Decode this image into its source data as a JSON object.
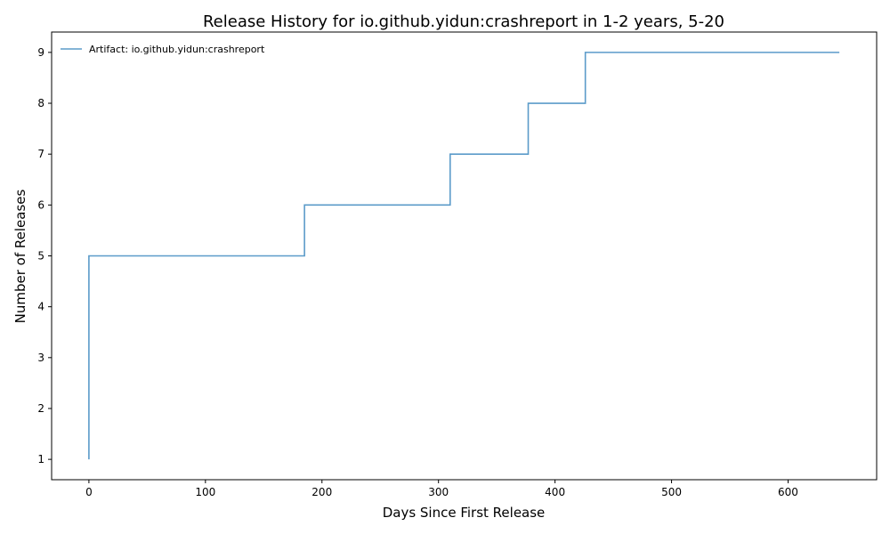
{
  "chart_data": {
    "type": "line",
    "title": "Release History for io.github.yidun:crashreport in 1-2 years, 5-20",
    "xlabel": "Days Since First Release",
    "ylabel": "Number of Releases",
    "xlim": [
      -32,
      676
    ],
    "ylim": [
      0.6,
      9.4
    ],
    "xticks": [
      0,
      100,
      200,
      300,
      400,
      500,
      600
    ],
    "yticks": [
      1,
      2,
      3,
      4,
      5,
      6,
      7,
      8,
      9
    ],
    "grid": false,
    "legend_position": "top-left",
    "step": "post",
    "series": [
      {
        "name": "Artifact: io.github.yidun:crashreport",
        "color": "#5b9bc9",
        "x": [
          0,
          0,
          0,
          0,
          0,
          185,
          310,
          377,
          426,
          644
        ],
        "y": [
          1,
          2,
          3,
          4,
          5,
          6,
          7,
          8,
          9,
          9
        ]
      }
    ]
  }
}
